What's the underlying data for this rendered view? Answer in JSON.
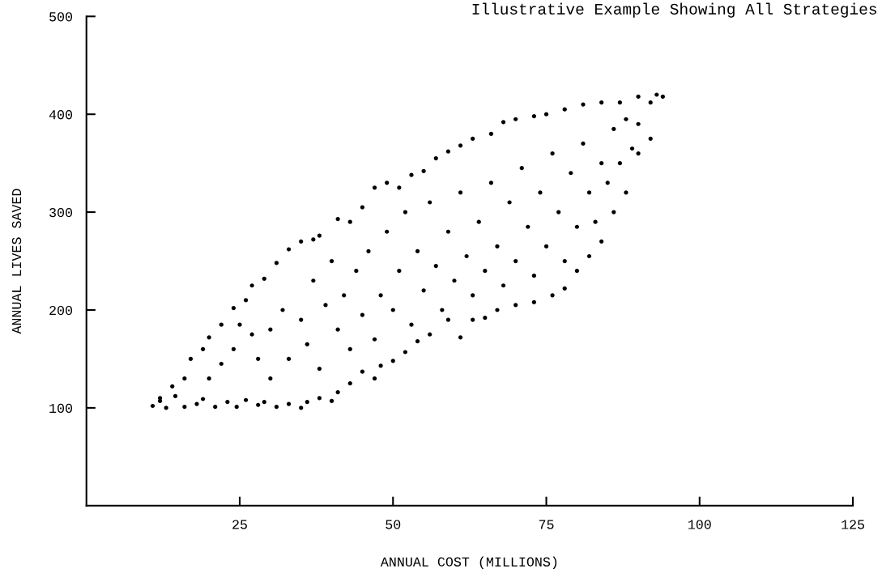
{
  "chart_data": {
    "type": "scatter",
    "title": "Illustrative Example Showing All Strategies",
    "xlabel": "ANNUAL COST (MILLIONS)",
    "ylabel": "ANNUAL LIVES SAVED",
    "x": [
      10.8,
      12,
      13,
      14.5,
      16,
      18,
      19,
      21,
      23,
      24.5,
      26,
      28,
      29,
      31,
      33,
      35,
      36,
      38,
      40,
      41,
      43,
      45,
      47,
      48,
      50,
      52,
      54,
      56,
      59,
      61,
      63,
      65,
      67,
      70,
      73,
      76,
      78,
      80,
      82,
      84,
      86,
      88,
      90,
      92,
      93,
      94,
      12,
      14,
      16,
      17,
      19,
      20,
      22,
      24,
      26,
      27,
      29,
      31,
      33,
      35,
      37,
      38,
      41,
      43,
      45,
      47,
      49,
      51,
      53,
      55,
      57,
      59,
      61,
      63,
      66,
      68,
      70,
      73,
      75,
      78,
      81,
      84,
      87,
      90,
      92,
      20,
      22,
      24,
      25,
      27,
      28,
      30,
      30,
      32,
      33,
      35,
      36,
      37,
      38,
      39,
      40,
      41,
      42,
      43,
      44,
      45,
      46,
      47,
      48,
      49,
      50,
      51,
      52,
      53,
      54,
      55,
      56,
      57,
      58,
      59,
      60,
      61,
      62,
      63,
      64,
      65,
      66,
      67,
      68,
      69,
      70,
      71,
      72,
      73,
      74,
      75,
      76,
      77,
      78,
      79,
      80,
      81,
      82,
      83,
      84,
      85,
      86,
      87,
      88,
      89,
      90
    ],
    "values": [
      102,
      107,
      100,
      112,
      101,
      104,
      109,
      101,
      106,
      101,
      108,
      103,
      106,
      101,
      104,
      100,
      106,
      110,
      107,
      116,
      125,
      137,
      130,
      143,
      148,
      157,
      168,
      175,
      190,
      172,
      190,
      192,
      200,
      205,
      208,
      215,
      222,
      240,
      255,
      270,
      300,
      320,
      360,
      375,
      420,
      418,
      110,
      122,
      130,
      150,
      160,
      172,
      185,
      202,
      210,
      225,
      232,
      248,
      262,
      270,
      272,
      276,
      293,
      290,
      305,
      325,
      330,
      325,
      338,
      342,
      355,
      362,
      368,
      375,
      380,
      392,
      395,
      398,
      400,
      405,
      410,
      412,
      412,
      418,
      412,
      130,
      145,
      160,
      185,
      175,
      150,
      180,
      130,
      200,
      150,
      190,
      165,
      230,
      140,
      205,
      250,
      180,
      215,
      160,
      240,
      195,
      260,
      170,
      215,
      280,
      200,
      240,
      300,
      185,
      260,
      220,
      310,
      245,
      200,
      280,
      230,
      320,
      255,
      215,
      290,
      240,
      330,
      265,
      225,
      310,
      250,
      345,
      285,
      235,
      320,
      265,
      360,
      300,
      250,
      340,
      285,
      370,
      320,
      290,
      350,
      330,
      385,
      350,
      395,
      365,
      390
    ],
    "color": "#000000",
    "marker": "circle",
    "xlim": [
      0,
      125
    ],
    "ylim": [
      0,
      500
    ],
    "xticks": [
      25,
      50,
      75,
      100,
      125
    ],
    "yticks": [
      100,
      200,
      300,
      400,
      500
    ],
    "grid": false,
    "legend": false
  }
}
